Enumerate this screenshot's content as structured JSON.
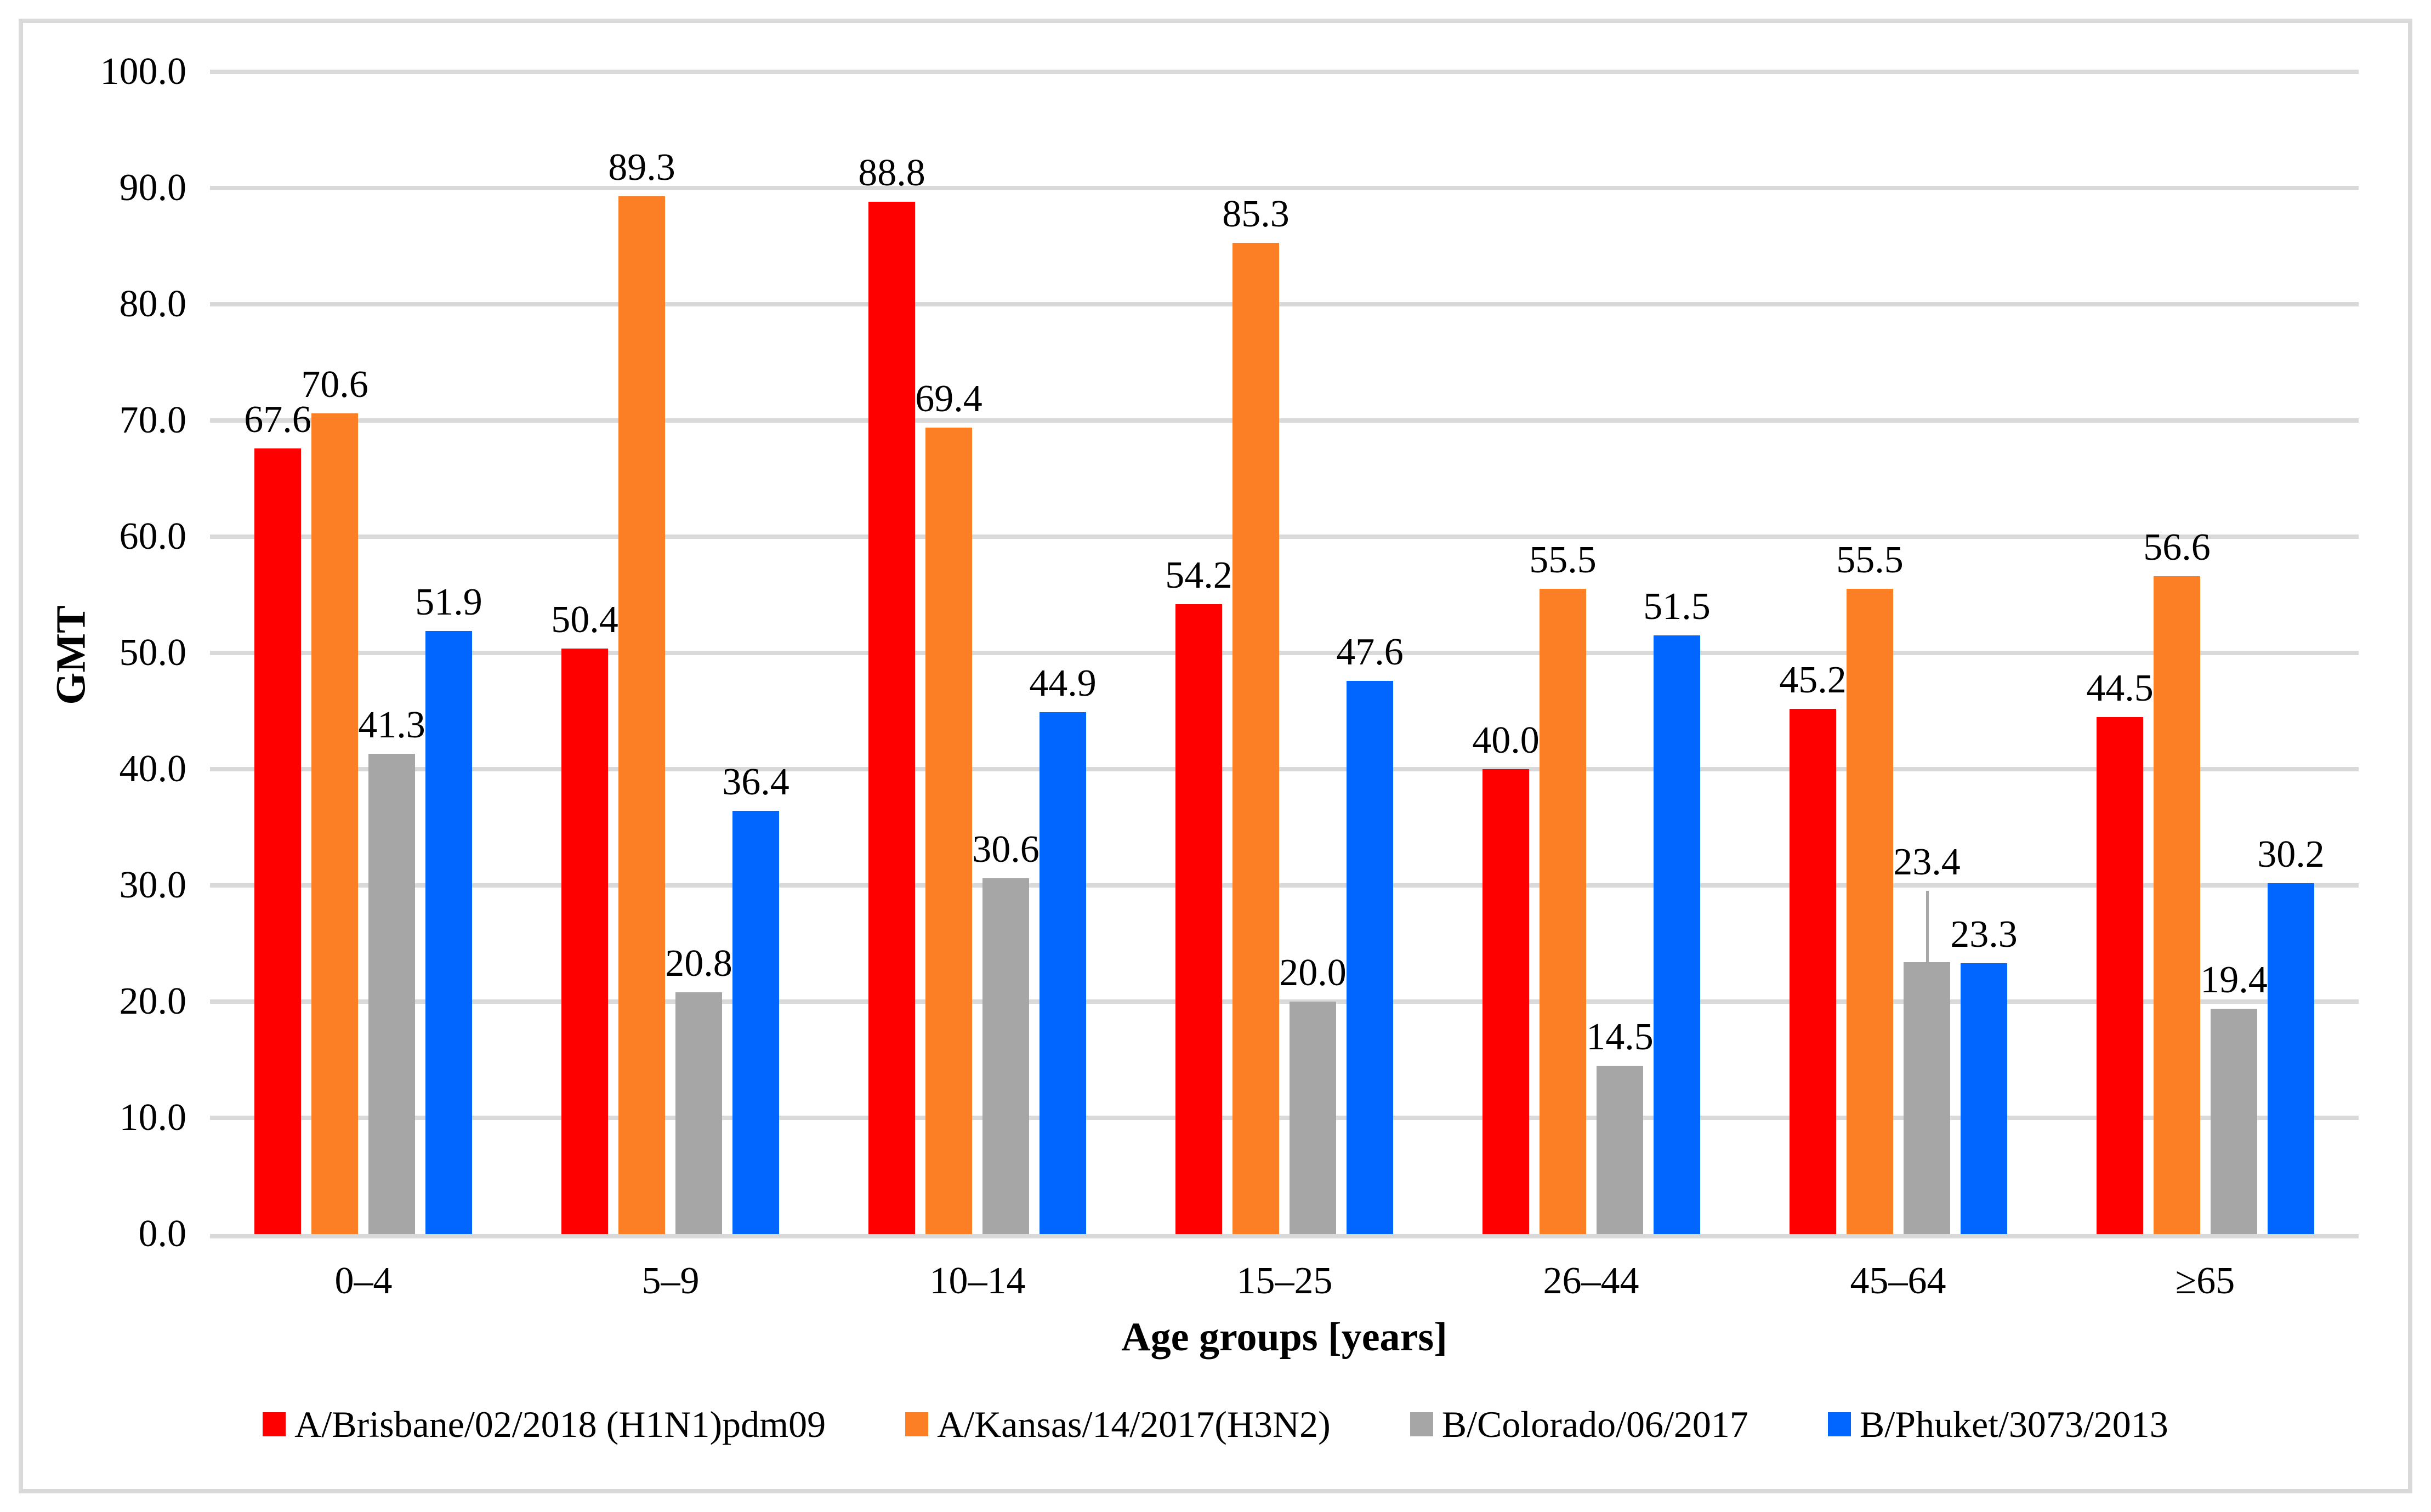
{
  "figure": {
    "background_color": "#FFFFFF",
    "border_color": "#D9D9D9"
  },
  "chart_data": {
    "type": "bar",
    "title": "",
    "xlabel": "Age groups [years]",
    "ylabel": "GMT",
    "categories": [
      "0–4",
      "5–9",
      "10–14",
      "15–25",
      "26–44",
      "45–64",
      "≥65"
    ],
    "series": [
      {
        "name": "A/Brisbane/02/2018 (H1N1)pdm09",
        "color": "#FF0000",
        "values": [
          67.6,
          50.4,
          88.8,
          54.2,
          40.0,
          45.2,
          44.5
        ]
      },
      {
        "name": "A/Kansas/14/2017(H3N2)",
        "color": "#FC7E25",
        "values": [
          70.6,
          89.3,
          69.4,
          85.3,
          55.5,
          55.5,
          56.6
        ]
      },
      {
        "name": "B/Colorado/06/2017",
        "color": "#A6A6A6",
        "values": [
          41.3,
          20.8,
          30.6,
          20.0,
          14.5,
          23.4,
          19.4
        ]
      },
      {
        "name": "B/Phuket/3073/2013",
        "color": "#0066FF",
        "values": [
          51.9,
          36.4,
          44.9,
          47.6,
          51.5,
          23.3,
          30.2
        ]
      }
    ],
    "ylim": [
      0,
      100
    ],
    "ytick_step": 10,
    "ytick_labels": [
      "0.0",
      "10.0",
      "20.0",
      "30.0",
      "40.0",
      "50.0",
      "60.0",
      "70.0",
      "80.0",
      "90.0",
      "100.0"
    ],
    "grid": "horizontal",
    "gridline_color": "#D9D9D9",
    "axis_line_color": "#D9D9D9",
    "data_labels": true,
    "data_label_decimals": 1,
    "label_leader_lines": [
      {
        "category": "45–64",
        "series": "B/Colorado/06/2017"
      }
    ],
    "legend_position": "bottom"
  }
}
